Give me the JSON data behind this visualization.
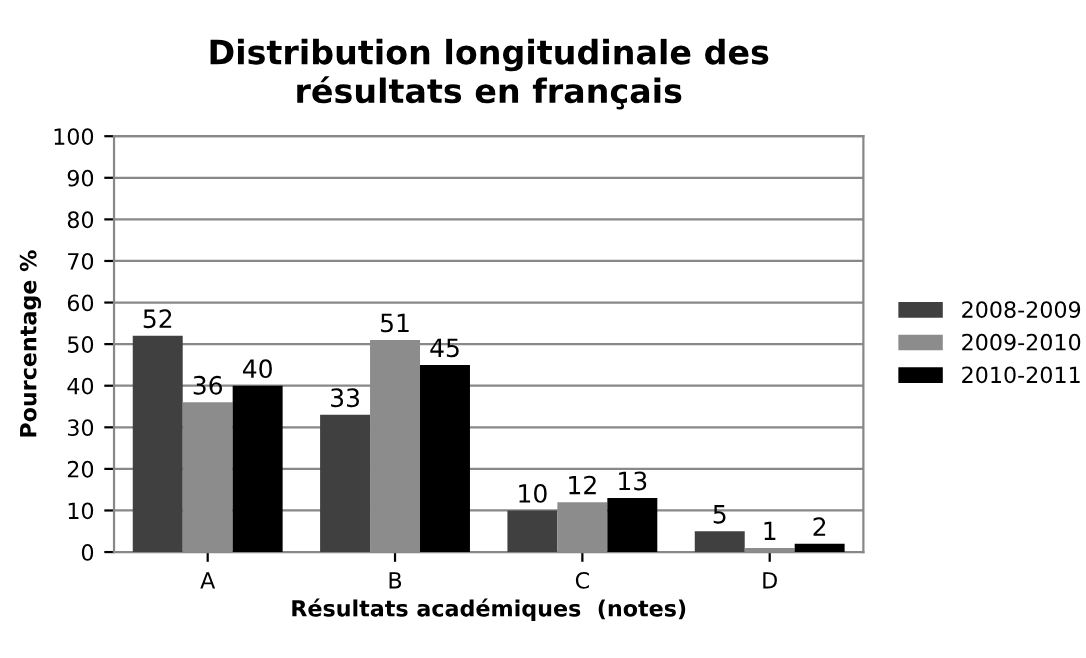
{
  "chart_data": {
    "type": "bar",
    "title": "Distribution longitudinale des\nrésultats en français",
    "xlabel": "Résultats académiques  (notes)",
    "ylabel": "Pourcentage %",
    "categories": [
      "A",
      "B",
      "C",
      "D"
    ],
    "series": [
      {
        "name": "2008-2009",
        "color": "#404040",
        "values": [
          52,
          33,
          10,
          5
        ]
      },
      {
        "name": "2009-2010",
        "color": "#8c8c8c",
        "values": [
          36,
          51,
          12,
          1
        ]
      },
      {
        "name": "2010-2011",
        "color": "#000000",
        "values": [
          40,
          45,
          13,
          2
        ]
      }
    ],
    "ylim": [
      0,
      100
    ],
    "yticks": [
      0,
      10,
      20,
      30,
      40,
      50,
      60,
      70,
      80,
      90,
      100
    ],
    "grid": "y",
    "legend": "right",
    "data_labels": true
  }
}
